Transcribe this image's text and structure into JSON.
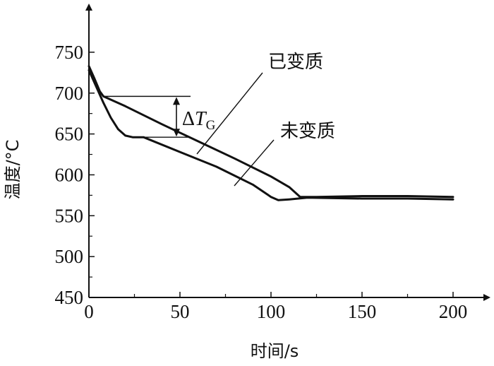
{
  "chart_data": {
    "type": "line",
    "xlabel": "时间/s",
    "ylabel": "温度/°C",
    "xlim": [
      0,
      220
    ],
    "ylim": [
      450,
      800
    ],
    "xticks": [
      0,
      50,
      100,
      150,
      200
    ],
    "yticks": [
      450,
      500,
      550,
      600,
      650,
      700,
      750
    ],
    "grid": false,
    "series": [
      {
        "name": "已变质",
        "x": [
          0,
          3,
          6,
          8,
          20,
          40,
          60,
          80,
          100,
          110,
          116,
          125,
          150,
          175,
          200
        ],
        "y": [
          733,
          718,
          702,
          696,
          684,
          662,
          641,
          620,
          598,
          585,
          573,
          573,
          574,
          574,
          573
        ]
      },
      {
        "name": "未变质",
        "x": [
          0,
          4,
          8,
          12,
          16,
          20,
          24,
          30,
          50,
          70,
          90,
          100,
          104,
          110,
          120,
          150,
          175,
          200
        ],
        "y": [
          728,
          708,
          688,
          670,
          656,
          648,
          646,
          646,
          628,
          610,
          588,
          573,
          569,
          570,
          572,
          571,
          571,
          570
        ]
      }
    ],
    "annotations": {
      "delta_symbol": "Δ",
      "delta_T": "T",
      "delta_sub": "G",
      "delta_range": [
        646,
        696
      ],
      "series_labels": [
        "已变质",
        "未变质"
      ]
    }
  }
}
